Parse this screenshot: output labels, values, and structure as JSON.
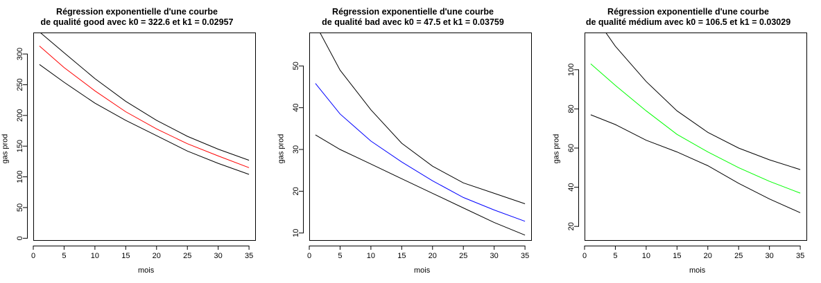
{
  "chart_data": [
    {
      "type": "line",
      "title": "Régression exponentielle d'une courbe\nde qualité good avec k0 = 322.6 et k1 = 0.02957",
      "xlabel": "mois",
      "ylabel": "gas prod",
      "xlim": [
        0,
        36
      ],
      "ylim": [
        -3,
        335
      ],
      "xticks": [
        0,
        5,
        10,
        15,
        20,
        25,
        30,
        35
      ],
      "yticks": [
        0,
        50,
        100,
        150,
        200,
        250,
        300
      ],
      "x": [
        1,
        5,
        10,
        15,
        20,
        25,
        30,
        35
      ],
      "series": [
        {
          "color": "#000000",
          "values": [
            336,
            302,
            260,
            223,
            192,
            166,
            145,
            127
          ]
        },
        {
          "color": "#ff0000",
          "values": [
            313,
            278,
            240,
            206,
            178,
            154,
            134,
            115
          ]
        },
        {
          "color": "#000000",
          "values": [
            283,
            254,
            220,
            192,
            167,
            142,
            122,
            104
          ]
        }
      ]
    },
    {
      "type": "line",
      "title": "Régression exponentielle d'une courbe\nde qualité bad avec k0 = 47.5 et k1 = 0.03759",
      "xlabel": "mois",
      "ylabel": "gas prod",
      "xlim": [
        0,
        36
      ],
      "ylim": [
        8.3,
        58
      ],
      "xticks": [
        0,
        5,
        10,
        15,
        20,
        25,
        30,
        35
      ],
      "yticks": [
        10,
        20,
        30,
        40,
        50
      ],
      "x": [
        1,
        5,
        10,
        15,
        20,
        25,
        30,
        35
      ],
      "series": [
        {
          "color": "#000000",
          "values": [
            60,
            49,
            39.5,
            31.5,
            26,
            22,
            19.5,
            17
          ]
        },
        {
          "color": "#0000ff",
          "values": [
            45.8,
            38.5,
            32,
            27,
            22.5,
            18.5,
            15.5,
            12.8
          ]
        },
        {
          "color": "#000000",
          "values": [
            33.5,
            30,
            26.5,
            23,
            19.5,
            16,
            12.5,
            9.5
          ]
        }
      ]
    },
    {
      "type": "line",
      "title": "Régression exponentielle d'une courbe\nde qualité médium avec k0 = 106.5 et k1 = 0.03029",
      "xlabel": "mois",
      "ylabel": "gas prod",
      "xlim": [
        0,
        36
      ],
      "ylim": [
        13,
        119
      ],
      "xticks": [
        0,
        5,
        10,
        15,
        20,
        25,
        30,
        35
      ],
      "yticks": [
        20,
        40,
        60,
        80,
        100
      ],
      "x": [
        1,
        5,
        10,
        15,
        20,
        25,
        30,
        35
      ],
      "series": [
        {
          "color": "#000000",
          "values": [
            130,
            112,
            94,
            79,
            68,
            60,
            54,
            49
          ]
        },
        {
          "color": "#00ff00",
          "values": [
            103,
            92,
            79,
            67,
            58,
            50,
            43,
            37
          ]
        },
        {
          "color": "#000000",
          "values": [
            77,
            72,
            64,
            58,
            51,
            42,
            34,
            27
          ]
        }
      ]
    }
  ]
}
